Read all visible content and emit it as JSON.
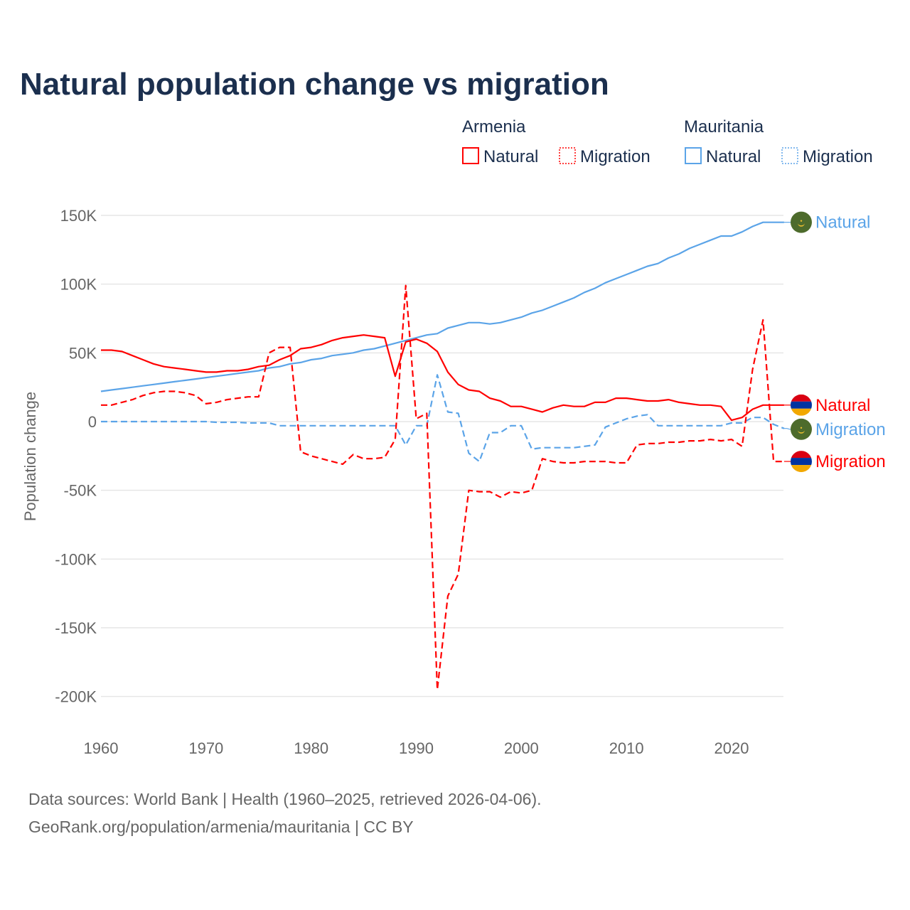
{
  "chart_data": {
    "type": "line",
    "title": "Natural population change vs migration",
    "ylabel": "Population change",
    "xlabel": "",
    "xlim": [
      1960,
      2025
    ],
    "ylim": [
      -200000,
      150000
    ],
    "grid": true,
    "x_ticks": [
      "1960",
      "1970",
      "1980",
      "1990",
      "2000",
      "2010",
      "2020"
    ],
    "y_ticks": [
      {
        "v": 150000,
        "label": "150K"
      },
      {
        "v": 100000,
        "label": "100K"
      },
      {
        "v": 50000,
        "label": "50K"
      },
      {
        "v": 0,
        "label": "0"
      },
      {
        "v": -50000,
        "label": "-50K"
      },
      {
        "v": -100000,
        "label": "-100K"
      },
      {
        "v": -150000,
        "label": "-150K"
      },
      {
        "v": -200000,
        "label": "-200K"
      }
    ],
    "legend": {
      "groups": [
        {
          "country": "Armenia",
          "items": [
            "Natural",
            "Migration"
          ]
        },
        {
          "country": "Mauritania",
          "items": [
            "Natural",
            "Migration"
          ]
        }
      ],
      "placement": "top-right"
    },
    "x": [
      1960,
      1961,
      1962,
      1963,
      1964,
      1965,
      1966,
      1967,
      1968,
      1969,
      1970,
      1971,
      1972,
      1973,
      1974,
      1975,
      1976,
      1977,
      1978,
      1979,
      1980,
      1981,
      1982,
      1983,
      1984,
      1985,
      1986,
      1987,
      1988,
      1989,
      1990,
      1991,
      1992,
      1993,
      1994,
      1995,
      1996,
      1997,
      1998,
      1999,
      2000,
      2001,
      2002,
      2003,
      2004,
      2005,
      2006,
      2007,
      2008,
      2009,
      2010,
      2011,
      2012,
      2013,
      2014,
      2015,
      2016,
      2017,
      2018,
      2019,
      2020,
      2021,
      2022,
      2023,
      2024,
      2025
    ],
    "series": [
      {
        "name": "Natural",
        "country": "Armenia",
        "color": "#ff0000",
        "dash": false,
        "flag": "armenia",
        "values": [
          52,
          52,
          51,
          48,
          45,
          42,
          40,
          39,
          38,
          37,
          36,
          36,
          37,
          37,
          38,
          40,
          41,
          45,
          48,
          53,
          54,
          56,
          59,
          61,
          62,
          63,
          62,
          61,
          33,
          58,
          60,
          57,
          51,
          36,
          27,
          23,
          22,
          17,
          15,
          11,
          11,
          9,
          7,
          10,
          12,
          11,
          11,
          14,
          14,
          17,
          17,
          16,
          15,
          15,
          16,
          14,
          13,
          12,
          12,
          11,
          1,
          3,
          9,
          12,
          12,
          12
        ]
      },
      {
        "name": "Migration",
        "country": "Armenia",
        "color": "#ff0000",
        "dash": true,
        "flag": "armenia",
        "values": [
          12,
          12,
          14,
          16,
          19,
          21,
          22,
          22,
          21,
          19,
          13,
          14,
          16,
          17,
          18,
          18,
          50,
          54,
          54,
          -22,
          -25,
          -27,
          -29,
          -31,
          -24,
          -27,
          -27,
          -26,
          -13,
          99,
          2,
          6,
          -195,
          -127,
          -111,
          -50,
          -51,
          -51,
          -55,
          -51,
          -52,
          -50,
          -27,
          -29,
          -30,
          -30,
          -29,
          -29,
          -29,
          -30,
          -30,
          -17,
          -16,
          -16,
          -15,
          -15,
          -14,
          -14,
          -13,
          -14,
          -13,
          -18,
          38,
          74,
          -29,
          -29
        ]
      },
      {
        "name": "Natural",
        "country": "Mauritania",
        "color": "#5ba4e8",
        "dash": false,
        "flag": "mauritania",
        "values": [
          22,
          23,
          24,
          25,
          26,
          27,
          28,
          29,
          30,
          31,
          32,
          33,
          34,
          35,
          36,
          37,
          39,
          40,
          42,
          43,
          45,
          46,
          48,
          49,
          50,
          52,
          53,
          55,
          57,
          59,
          61,
          63,
          64,
          68,
          70,
          72,
          72,
          71,
          72,
          74,
          76,
          79,
          81,
          84,
          87,
          90,
          94,
          97,
          101,
          104,
          107,
          110,
          113,
          115,
          119,
          122,
          126,
          129,
          132,
          135,
          135,
          138,
          142,
          145,
          145,
          145
        ]
      },
      {
        "name": "Migration",
        "country": "Mauritania",
        "color": "#5ba4e8",
        "dash": true,
        "flag": "mauritania",
        "values": [
          0,
          0,
          0,
          0,
          0,
          0,
          0,
          0,
          0,
          0,
          0,
          -0.5,
          -0.5,
          -0.5,
          -1,
          -1,
          -1,
          -3,
          -3,
          -3,
          -3,
          -3,
          -3,
          -3,
          -3,
          -3,
          -3,
          -3,
          -3,
          -17,
          -3,
          -3,
          34,
          7,
          6,
          -23,
          -29,
          -8,
          -8,
          -3,
          -3,
          -20,
          -19,
          -19,
          -19,
          -19,
          -18,
          -17,
          -4,
          -1,
          2,
          4,
          5,
          -3,
          -3,
          -3,
          -3,
          -3,
          -3,
          -3,
          -1,
          -1,
          3,
          3,
          -2,
          -5
        ]
      }
    ],
    "value_unit": "thousands"
  },
  "source": {
    "line1": "Data sources: World Bank | Health (1960–2025, retrieved 2026-04-06).",
    "line2": "GeoRank.org/population/armenia/mauritania | CC BY"
  }
}
